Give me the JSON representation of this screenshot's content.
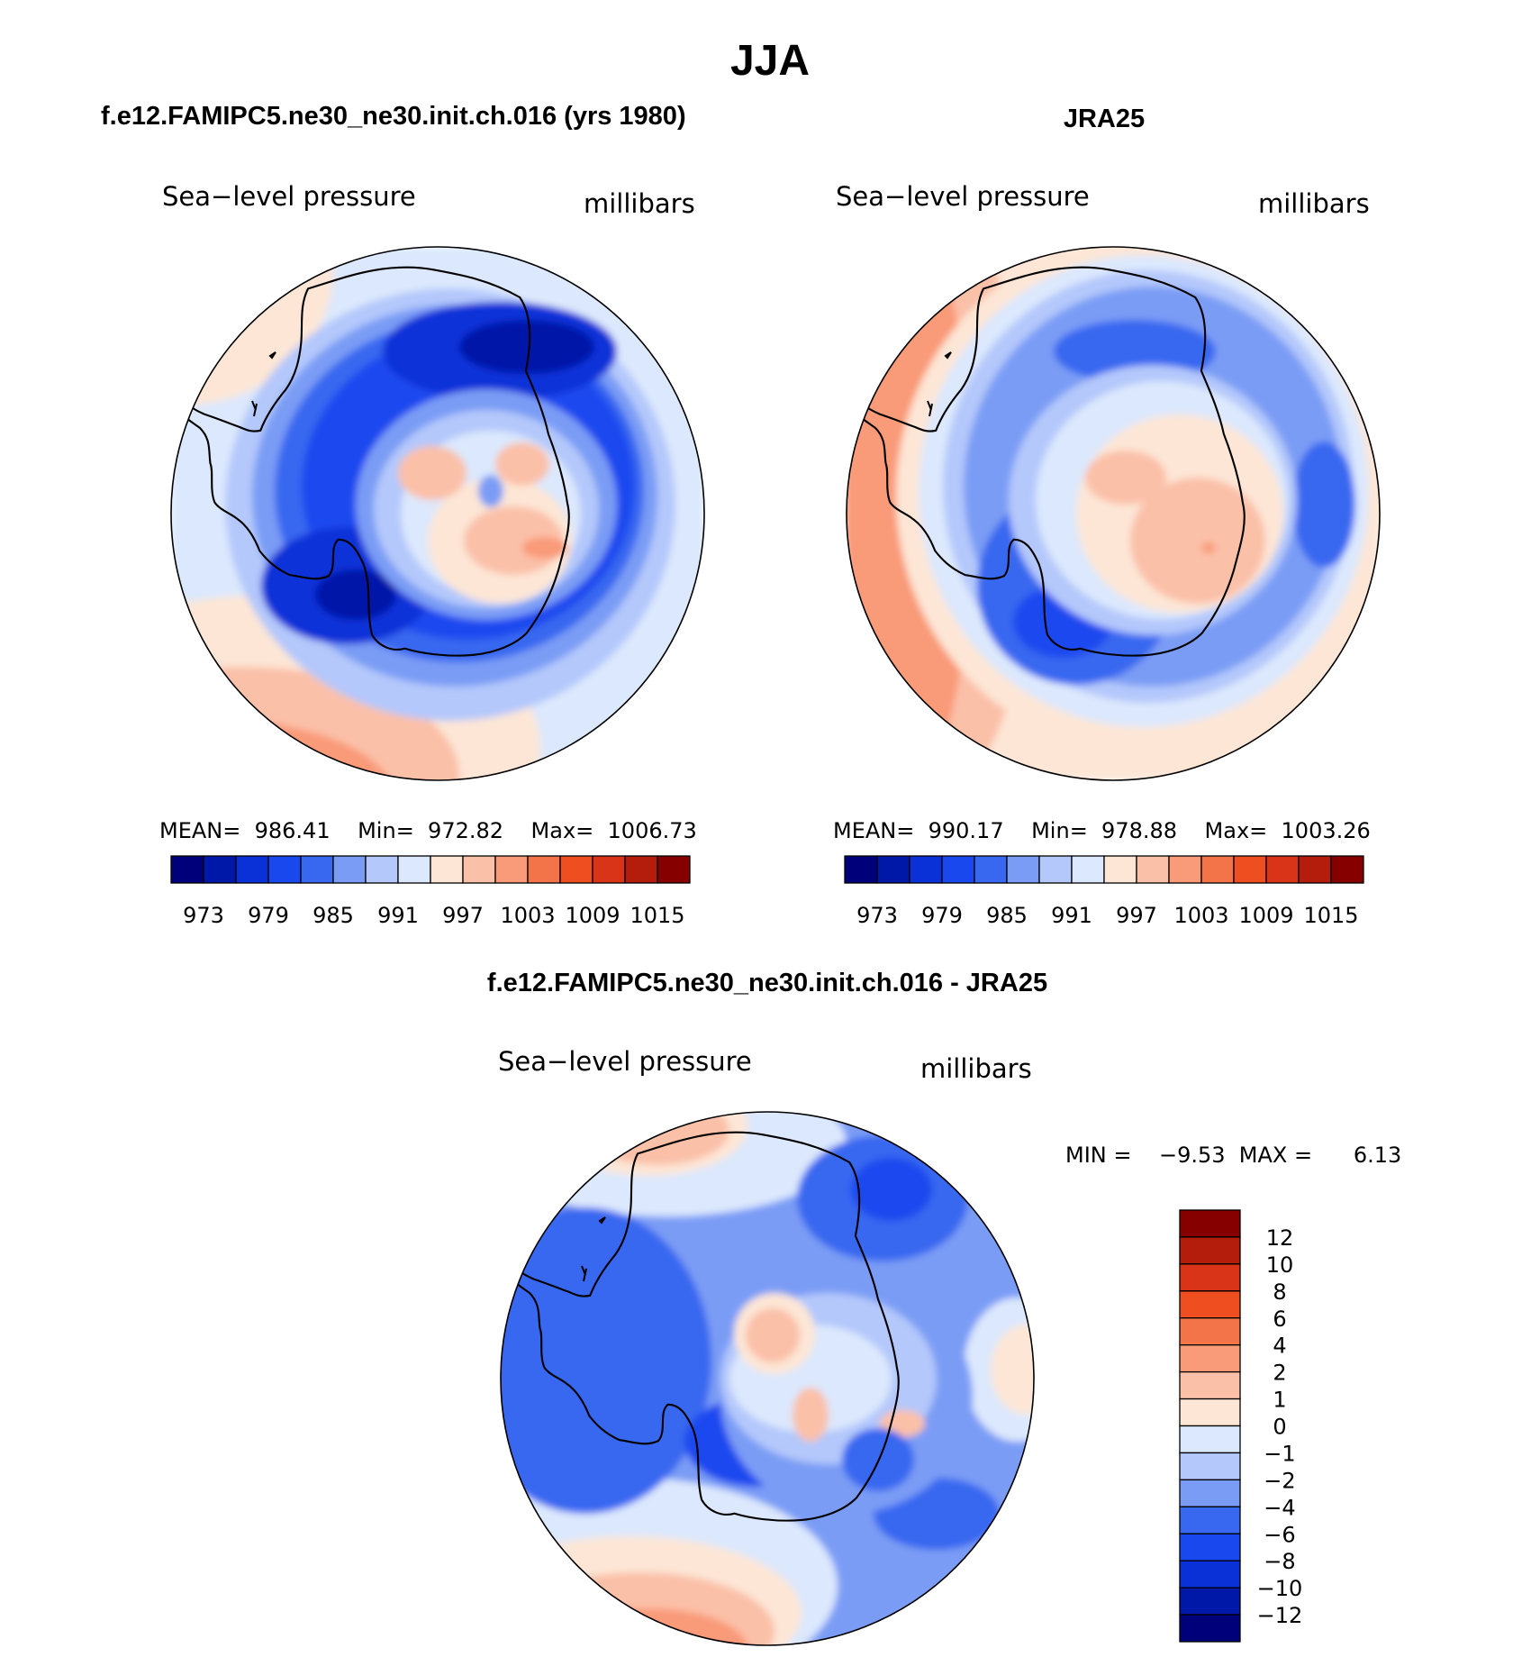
{
  "page": {
    "season": "JJA",
    "colors": {
      "levels": [
        "#00007a",
        "#0018a8",
        "#0a30d8",
        "#1a48ef",
        "#3868f0",
        "#7a9cf5",
        "#b4c8fb",
        "#dce8fd",
        "#fde6d6",
        "#fbc0a8",
        "#f99a78",
        "#f4744a",
        "#ef4e20",
        "#d93418",
        "#b41c0c",
        "#860000"
      ]
    }
  },
  "panels": [
    {
      "heading": "f.e12.FAMIPC5.ne30_ne30.init.ch.016 (yrs 1980)",
      "variable": "Sea−level pressure",
      "units": "millibars",
      "stats": "MEAN=  986.41    Min=  972.82    Max=  1006.73",
      "colorbar_labels": [
        "973",
        "979",
        "985",
        "991",
        "997",
        "1003",
        "1009",
        "1015"
      ]
    },
    {
      "heading": "JRA25",
      "variable": "Sea−level pressure",
      "units": "millibars",
      "stats": "MEAN=  990.17    Min=  978.88    Max=  1003.26",
      "colorbar_labels": [
        "973",
        "979",
        "985",
        "991",
        "997",
        "1003",
        "1009",
        "1015"
      ]
    }
  ],
  "difference": {
    "heading": "f.e12.FAMIPC5.ne30_ne30.init.ch.016 - JRA25",
    "variable": "Sea−level pressure",
    "units": "millibars",
    "stats": "MIN =    −9.53  MAX =      6.13",
    "colorbar_labels": [
      "12",
      "10",
      "8",
      "6",
      "4",
      "2",
      "1",
      "0",
      "−1",
      "−2",
      "−4",
      "−6",
      "−8",
      "−10",
      "−12"
    ]
  }
}
